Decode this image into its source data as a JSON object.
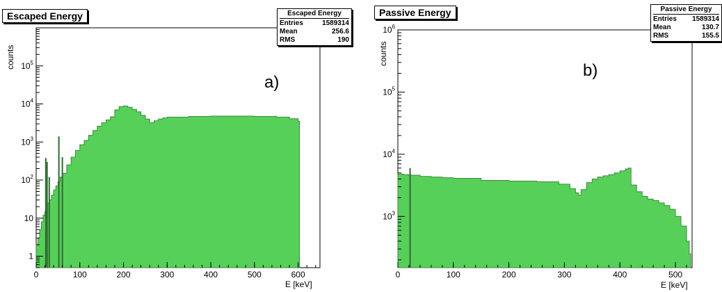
{
  "chart_data": [
    {
      "type": "area",
      "title": "Escaped Energy",
      "panel_label": "a)",
      "xlabel": "E [keV]",
      "ylabel": "counts",
      "xlim": [
        0,
        650
      ],
      "ylim": [
        0.5,
        1000000
      ],
      "yscale": "log",
      "fill_color": "#57d059",
      "stats": {
        "title": "Escaped Energy",
        "rows": [
          {
            "label": "Entries",
            "value": "1589314"
          },
          {
            "label": "Mean",
            "value": "256.6"
          },
          {
            "label": "RMS",
            "value": "190"
          }
        ]
      },
      "x_ticks": [
        "0",
        "100",
        "200",
        "300",
        "400",
        "500",
        "600"
      ],
      "y_ticks": [
        {
          "value": 1,
          "base": "1",
          "exp": ""
        },
        {
          "value": 10,
          "base": "10",
          "exp": ""
        },
        {
          "value": 100,
          "base": "10",
          "exp": "2"
        },
        {
          "value": 1000,
          "base": "10",
          "exp": "3"
        },
        {
          "value": 10000,
          "base": "10",
          "exp": "4"
        },
        {
          "value": 100000,
          "base": "10",
          "exp": "5"
        }
      ],
      "x": [
        0,
        4,
        8,
        12,
        16,
        20,
        25,
        30,
        35,
        40,
        45,
        50,
        55,
        60,
        70,
        80,
        90,
        100,
        110,
        120,
        130,
        140,
        150,
        160,
        170,
        180,
        190,
        200,
        210,
        220,
        230,
        240,
        250,
        260,
        270,
        280,
        290,
        300,
        350,
        400,
        450,
        500,
        550,
        580,
        600
      ],
      "y": [
        2,
        3,
        5,
        8,
        12,
        15,
        25,
        30,
        40,
        55,
        70,
        90,
        120,
        150,
        250,
        400,
        600,
        850,
        1100,
        1500,
        2000,
        2600,
        3200,
        3800,
        4600,
        7000,
        8500,
        8800,
        8200,
        7200,
        6200,
        5000,
        4000,
        3200,
        3600,
        4000,
        4300,
        4500,
        4700,
        4800,
        4800,
        4700,
        4500,
        4100,
        3500
      ],
      "spikes": [
        {
          "x": 22,
          "y": 380
        },
        {
          "x": 25,
          "y": 300
        },
        {
          "x": 30,
          "y": 120
        },
        {
          "x": 52,
          "y": 1400
        },
        {
          "x": 60,
          "y": 400
        }
      ]
    },
    {
      "type": "area",
      "title": "Passive Energy",
      "panel_label": "b)",
      "xlabel": "E [keV]",
      "ylabel": "counts",
      "xlim": [
        0,
        530
      ],
      "ylim": [
        150,
        1000000
      ],
      "yscale": "log",
      "fill_color": "#57d059",
      "stats": {
        "title": "Passive Energy",
        "rows": [
          {
            "label": "Entries",
            "value": "1589314"
          },
          {
            "label": "Mean",
            "value": "130.7"
          },
          {
            "label": "RMS",
            "value": "155.5"
          }
        ]
      },
      "x_ticks": [
        "0",
        "100",
        "200",
        "300",
        "400",
        "500"
      ],
      "y_ticks": [
        {
          "value": 1000,
          "base": "10",
          "exp": "3"
        },
        {
          "value": 10000,
          "base": "10",
          "exp": "4"
        },
        {
          "value": 100000,
          "base": "10",
          "exp": "5"
        },
        {
          "value": 1000000,
          "base": "10",
          "exp": "6"
        }
      ],
      "x": [
        0,
        10,
        20,
        40,
        60,
        80,
        100,
        150,
        200,
        250,
        290,
        310,
        320,
        325,
        330,
        340,
        350,
        360,
        370,
        380,
        390,
        400,
        410,
        415,
        420,
        430,
        440,
        450,
        460,
        470,
        480,
        490,
        500,
        510,
        520,
        525
      ],
      "y": [
        4800,
        4700,
        4600,
        4400,
        4300,
        4200,
        4100,
        3800,
        3700,
        3600,
        3300,
        2800,
        2400,
        2200,
        2700,
        3500,
        4000,
        4300,
        4500,
        4700,
        5000,
        5400,
        5800,
        6000,
        3200,
        2500,
        2100,
        1900,
        1800,
        1650,
        1500,
        1300,
        1000,
        700,
        400,
        250
      ],
      "spikes": [
        {
          "x": 22,
          "y": 6000
        }
      ]
    }
  ]
}
